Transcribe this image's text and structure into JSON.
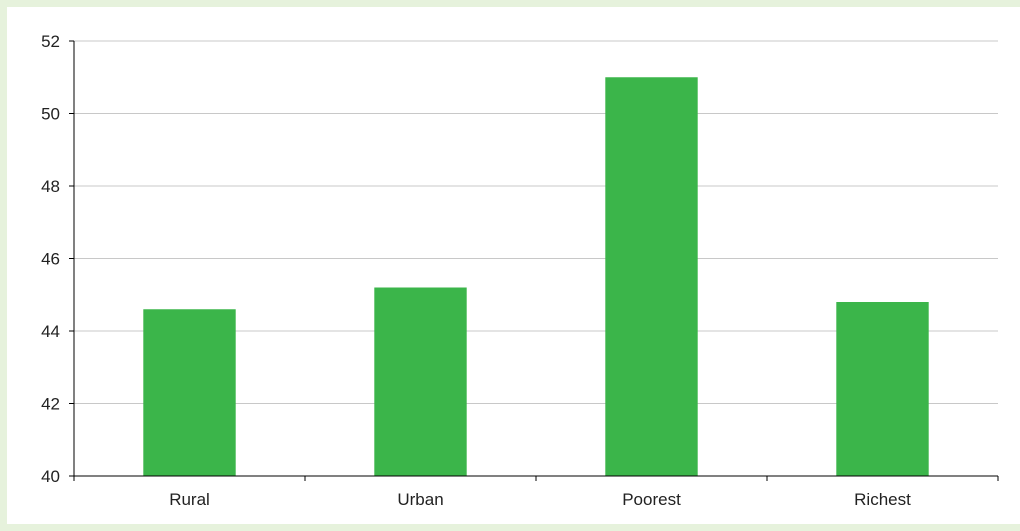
{
  "chart_data": {
    "type": "bar",
    "title": "",
    "xlabel": "",
    "ylabel": "",
    "categories": [
      "Rural",
      "Urban",
      "Poorest",
      "Richest"
    ],
    "values": [
      44.6,
      45.2,
      51.0,
      44.8
    ],
    "ylim": [
      40,
      52
    ],
    "yticks": [
      "40",
      "42",
      "44",
      "46",
      "48",
      "50",
      "52"
    ],
    "grid": true,
    "legend": "none",
    "bar_color": "#3bb54a",
    "grid_color": "#c8c8c8",
    "axis_color": "#000000"
  }
}
